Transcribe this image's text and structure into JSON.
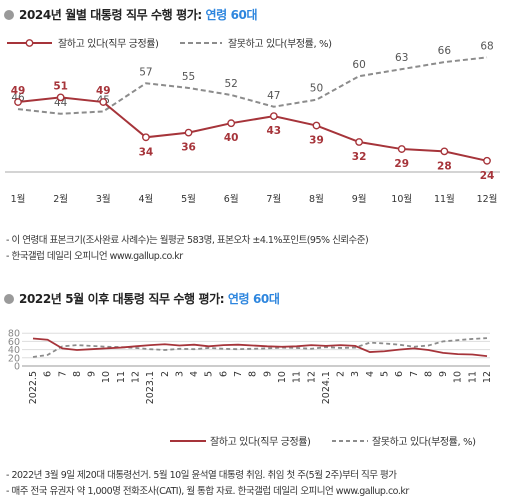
{
  "section1": {
    "title_prefix": "2024년 월별 대통령 직무 수행 평가: ",
    "title_highlight": "연령 60대",
    "notes": [
      "- 이 연령대 표본크기(조사완료 사례수)는 월평균 583명, 표본오차 ±4.1%포인트(95% 신뢰수준)",
      "- 한국갤럽 데일리 오피니언 www.gallup.co.kr"
    ]
  },
  "section2": {
    "title_prefix": "2022년 5월 이후 대통령 직무 수행 평가: ",
    "title_highlight": "연령 60대",
    "notes": [
      "- 2022년 3월 9일 제20대 대통령선거. 5월 10일 윤석열 대통령 취임. 취임 첫 주(5월 2주)부터 직무 평가",
      "- 매주 전국 유권자 약 1,000명 전화조사(CATI), 월 통합 자료. 한국갤럽 데일리 오피니언 www.gallup.co.kr"
    ]
  },
  "colors": {
    "approve": "#a6343a",
    "disapprove": "#8c8c8c",
    "highlight": "#2e86de"
  },
  "chart_data": [
    {
      "type": "line",
      "categories": [
        "1월",
        "2월",
        "3월",
        "4월",
        "5월",
        "6월",
        "7월",
        "8월",
        "9월",
        "10월",
        "11월",
        "12월"
      ],
      "ylim": [
        0,
        100
      ],
      "legend_position": "top",
      "series": [
        {
          "name": "잘하고 있다(직무 긍정률)",
          "style": "solid-markers",
          "values": [
            49,
            51,
            49,
            34,
            36,
            40,
            43,
            39,
            32,
            29,
            28,
            24
          ]
        },
        {
          "name": "잘못하고 있다(부정률, %)",
          "style": "dashed",
          "values": [
            46,
            44,
            45,
            57,
            55,
            52,
            47,
            50,
            60,
            63,
            66,
            68
          ]
        }
      ]
    },
    {
      "type": "line",
      "categories": [
        "2022.5",
        "6",
        "7",
        "8",
        "9",
        "10",
        "11",
        "12",
        "2023.1",
        "2",
        "3",
        "4",
        "5",
        "6",
        "7",
        "8",
        "9",
        "10",
        "11",
        "12",
        "2024.1",
        "2",
        "3",
        "4",
        "5",
        "6",
        "7",
        "8",
        "9",
        "10",
        "11",
        "12"
      ],
      "yticks": [
        0,
        20,
        40,
        60,
        80
      ],
      "ylim": [
        0,
        80
      ],
      "grid": true,
      "legend_position": "bottom",
      "series": [
        {
          "name": "잘하고 있다(직무 긍정률)",
          "style": "solid",
          "values": [
            67,
            64,
            43,
            39,
            41,
            43,
            45,
            48,
            51,
            53,
            50,
            52,
            48,
            51,
            52,
            50,
            48,
            47,
            48,
            51,
            49,
            51,
            49,
            34,
            36,
            40,
            43,
            39,
            32,
            29,
            28,
            24
          ]
        },
        {
          "name": "잘못하고 있다(부정률, %)",
          "style": "dashed",
          "values": [
            22,
            27,
            48,
            51,
            49,
            47,
            46,
            44,
            41,
            39,
            42,
            41,
            44,
            42,
            41,
            42,
            43,
            45,
            44,
            42,
            46,
            44,
            45,
            57,
            55,
            52,
            47,
            50,
            60,
            63,
            66,
            68
          ]
        }
      ]
    }
  ]
}
